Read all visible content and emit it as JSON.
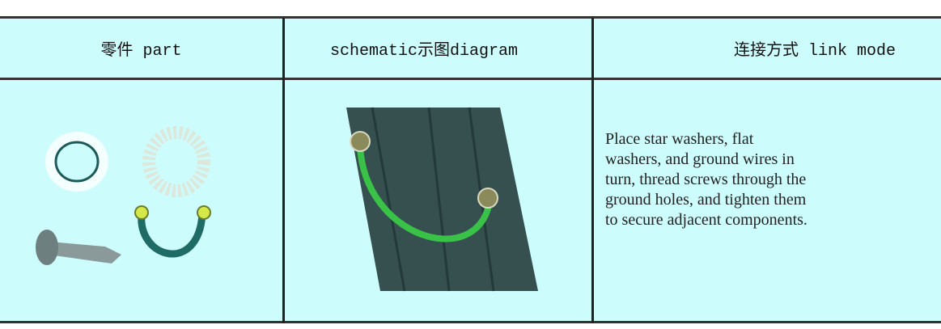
{
  "table": {
    "header": [
      "零件 part",
      "schematic示图diagram",
      "连接方式 link mode"
    ],
    "rows": [
      {
        "cells": [
          {
            "lines": [
              "Place star washers, flat",
              "washers, and ground wires in",
              "turn, thread screws through the",
              "ground holes, and tighten them",
              "to secure adjacent components."
            ]
          }
        ]
      }
    ]
  }
}
